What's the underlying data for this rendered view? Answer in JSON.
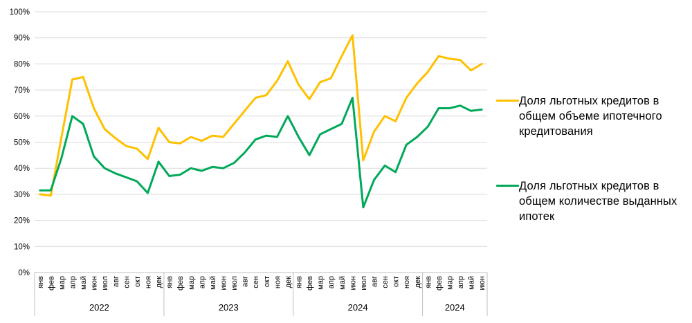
{
  "chart_data": {
    "type": "line",
    "title": "",
    "grid": true,
    "legend_position": "right",
    "y_axis": {
      "min": 0,
      "max": 100,
      "step": 10,
      "tick_labels": [
        "0%",
        "10%",
        "20%",
        "30%",
        "40%",
        "50%",
        "60%",
        "70%",
        "80%",
        "90%",
        "100%"
      ]
    },
    "x_axis": {
      "groups": [
        {
          "year": "2022",
          "months": [
            "янв",
            "фев",
            "мар",
            "апр",
            "май",
            "июн",
            "июл",
            "авг",
            "сен",
            "окт",
            "ноя",
            "дек"
          ]
        },
        {
          "year": "2023",
          "months": [
            "янв",
            "фев",
            "мар",
            "апр",
            "май",
            "июн",
            "июл",
            "авг",
            "сен",
            "окт",
            "ноя",
            "дек"
          ]
        },
        {
          "year": "2024",
          "months": [
            "янв",
            "фев",
            "мар",
            "апр",
            "май",
            "июн",
            "июл",
            "авг",
            "сен",
            "окт",
            "ноя",
            "дек"
          ]
        },
        {
          "year": "2024",
          "months": [
            "янв",
            "фев",
            "мар",
            "апр",
            "май",
            "июн"
          ]
        }
      ]
    },
    "series": [
      {
        "name": "Доля льготных кредитов в общем объеме ипотечного кредитования",
        "color": "#FFC000",
        "values": [
          30,
          29.5,
          52,
          74,
          75,
          63,
          55,
          51.5,
          48.5,
          47.5,
          43.5,
          55.5,
          50,
          49.5,
          52,
          50.5,
          52.5,
          52,
          57,
          62,
          67,
          68,
          73.5,
          81,
          72,
          66.5,
          73,
          74.5,
          83,
          91,
          43,
          54,
          60,
          58,
          67,
          72.5,
          77,
          83,
          82,
          81.5,
          77.5,
          80
        ]
      },
      {
        "name": "Доля льготных кредитов в общем количестве выданных ипотек",
        "color": "#00A859",
        "values": [
          31.5,
          31.5,
          44,
          60,
          57,
          44.5,
          40,
          38,
          36.5,
          35,
          30.5,
          42.5,
          37,
          37.5,
          40,
          39,
          40.5,
          40,
          42,
          46,
          51,
          52.5,
          52,
          60,
          52,
          45,
          53,
          55,
          57,
          67,
          25,
          35.5,
          41,
          38.5,
          49,
          52,
          56,
          63,
          63,
          64,
          62,
          62.5
        ]
      }
    ],
    "colors": {
      "gridline": "#D9D9D9",
      "axis_line": "#BFBFBF",
      "tick_text": "#000000"
    }
  },
  "legend": {
    "items": [
      {
        "label": "Доля льготных кредитов в\nобщем объеме ипотечного\nкредитования",
        "color": "#FFC000"
      },
      {
        "label": "Доля льготных кредитов в\nобщем количестве выданных\nипотек",
        "color": "#00A859"
      }
    ]
  }
}
